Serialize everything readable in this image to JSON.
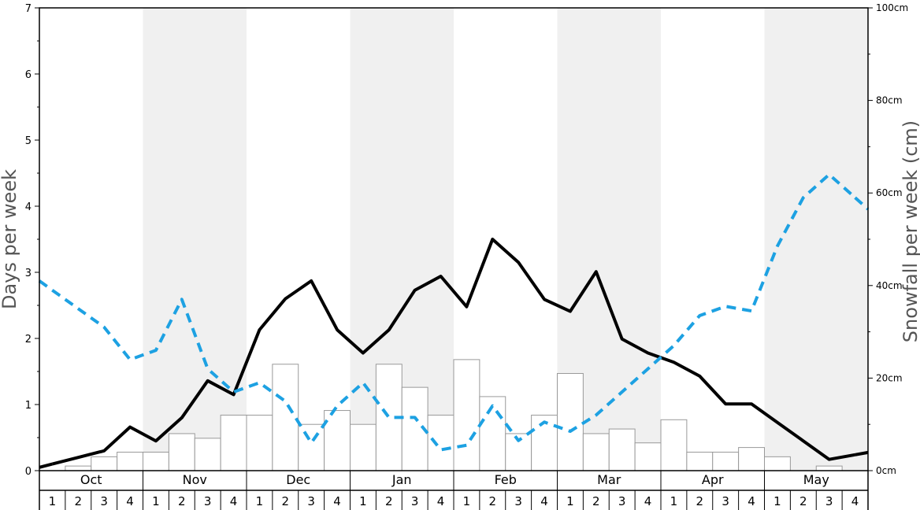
{
  "chart_data": {
    "type": "bar+line",
    "months": [
      "Oct",
      "Nov",
      "Dec",
      "Jan",
      "Feb",
      "Mar",
      "Apr",
      "May"
    ],
    "week_labels": [
      "1",
      "2",
      "3",
      "4"
    ],
    "shaded_months": [
      "Nov",
      "Jan",
      "Mar",
      "May"
    ],
    "ylabel_left": "Days per week",
    "ylabel_right": "Snowfall per week (cm)",
    "ylim_left": [
      0,
      7
    ],
    "ylim_right": [
      0,
      100
    ],
    "left_ticks": [
      "0",
      "1",
      "2",
      "3",
      "4",
      "5",
      "6",
      "7"
    ],
    "right_ticks": [
      "0cm",
      "20cm",
      "40cm",
      "60cm",
      "80cm",
      "100cm"
    ],
    "series": [
      {
        "type": "bar",
        "axis": "left",
        "color": "#ffffff",
        "stroke": "#999999",
        "values": [
          0.0,
          0.07,
          0.21,
          0.28,
          0.28,
          0.56,
          0.49,
          0.84,
          0.84,
          1.61,
          0.7,
          0.91,
          0.7,
          1.61,
          1.26,
          0.84,
          1.68,
          1.12,
          0.56,
          0.84,
          1.47,
          0.56,
          0.63,
          0.42,
          0.77,
          0.28,
          0.28,
          0.35,
          0.21,
          0.0,
          0.07,
          0.0
        ]
      },
      {
        "type": "line",
        "axis": "left",
        "color": "#000000",
        "style": "solid",
        "values": [
          0.1,
          0.2,
          0.3,
          0.66,
          0.45,
          0.8,
          1.36,
          1.15,
          2.13,
          2.6,
          2.87,
          2.13,
          1.78,
          2.13,
          2.73,
          2.94,
          2.48,
          3.5,
          3.15,
          2.59,
          2.41,
          3.01,
          1.99,
          1.78,
          1.64,
          1.43,
          1.01,
          1.01,
          0.73,
          0.45,
          0.17,
          0.24
        ]
      },
      {
        "type": "line",
        "axis": "right",
        "color": "#1da1e2",
        "style": "dashed",
        "values": [
          39,
          35,
          31,
          24,
          26,
          37,
          22,
          17,
          19,
          15,
          6,
          14,
          19,
          11.5,
          11.5,
          4.5,
          5.5,
          14,
          6.5,
          10.5,
          8.5,
          12,
          17,
          22,
          27,
          33.5,
          35.5,
          34.5,
          48.5,
          59,
          64,
          59
        ]
      }
    ],
    "grid": false
  }
}
